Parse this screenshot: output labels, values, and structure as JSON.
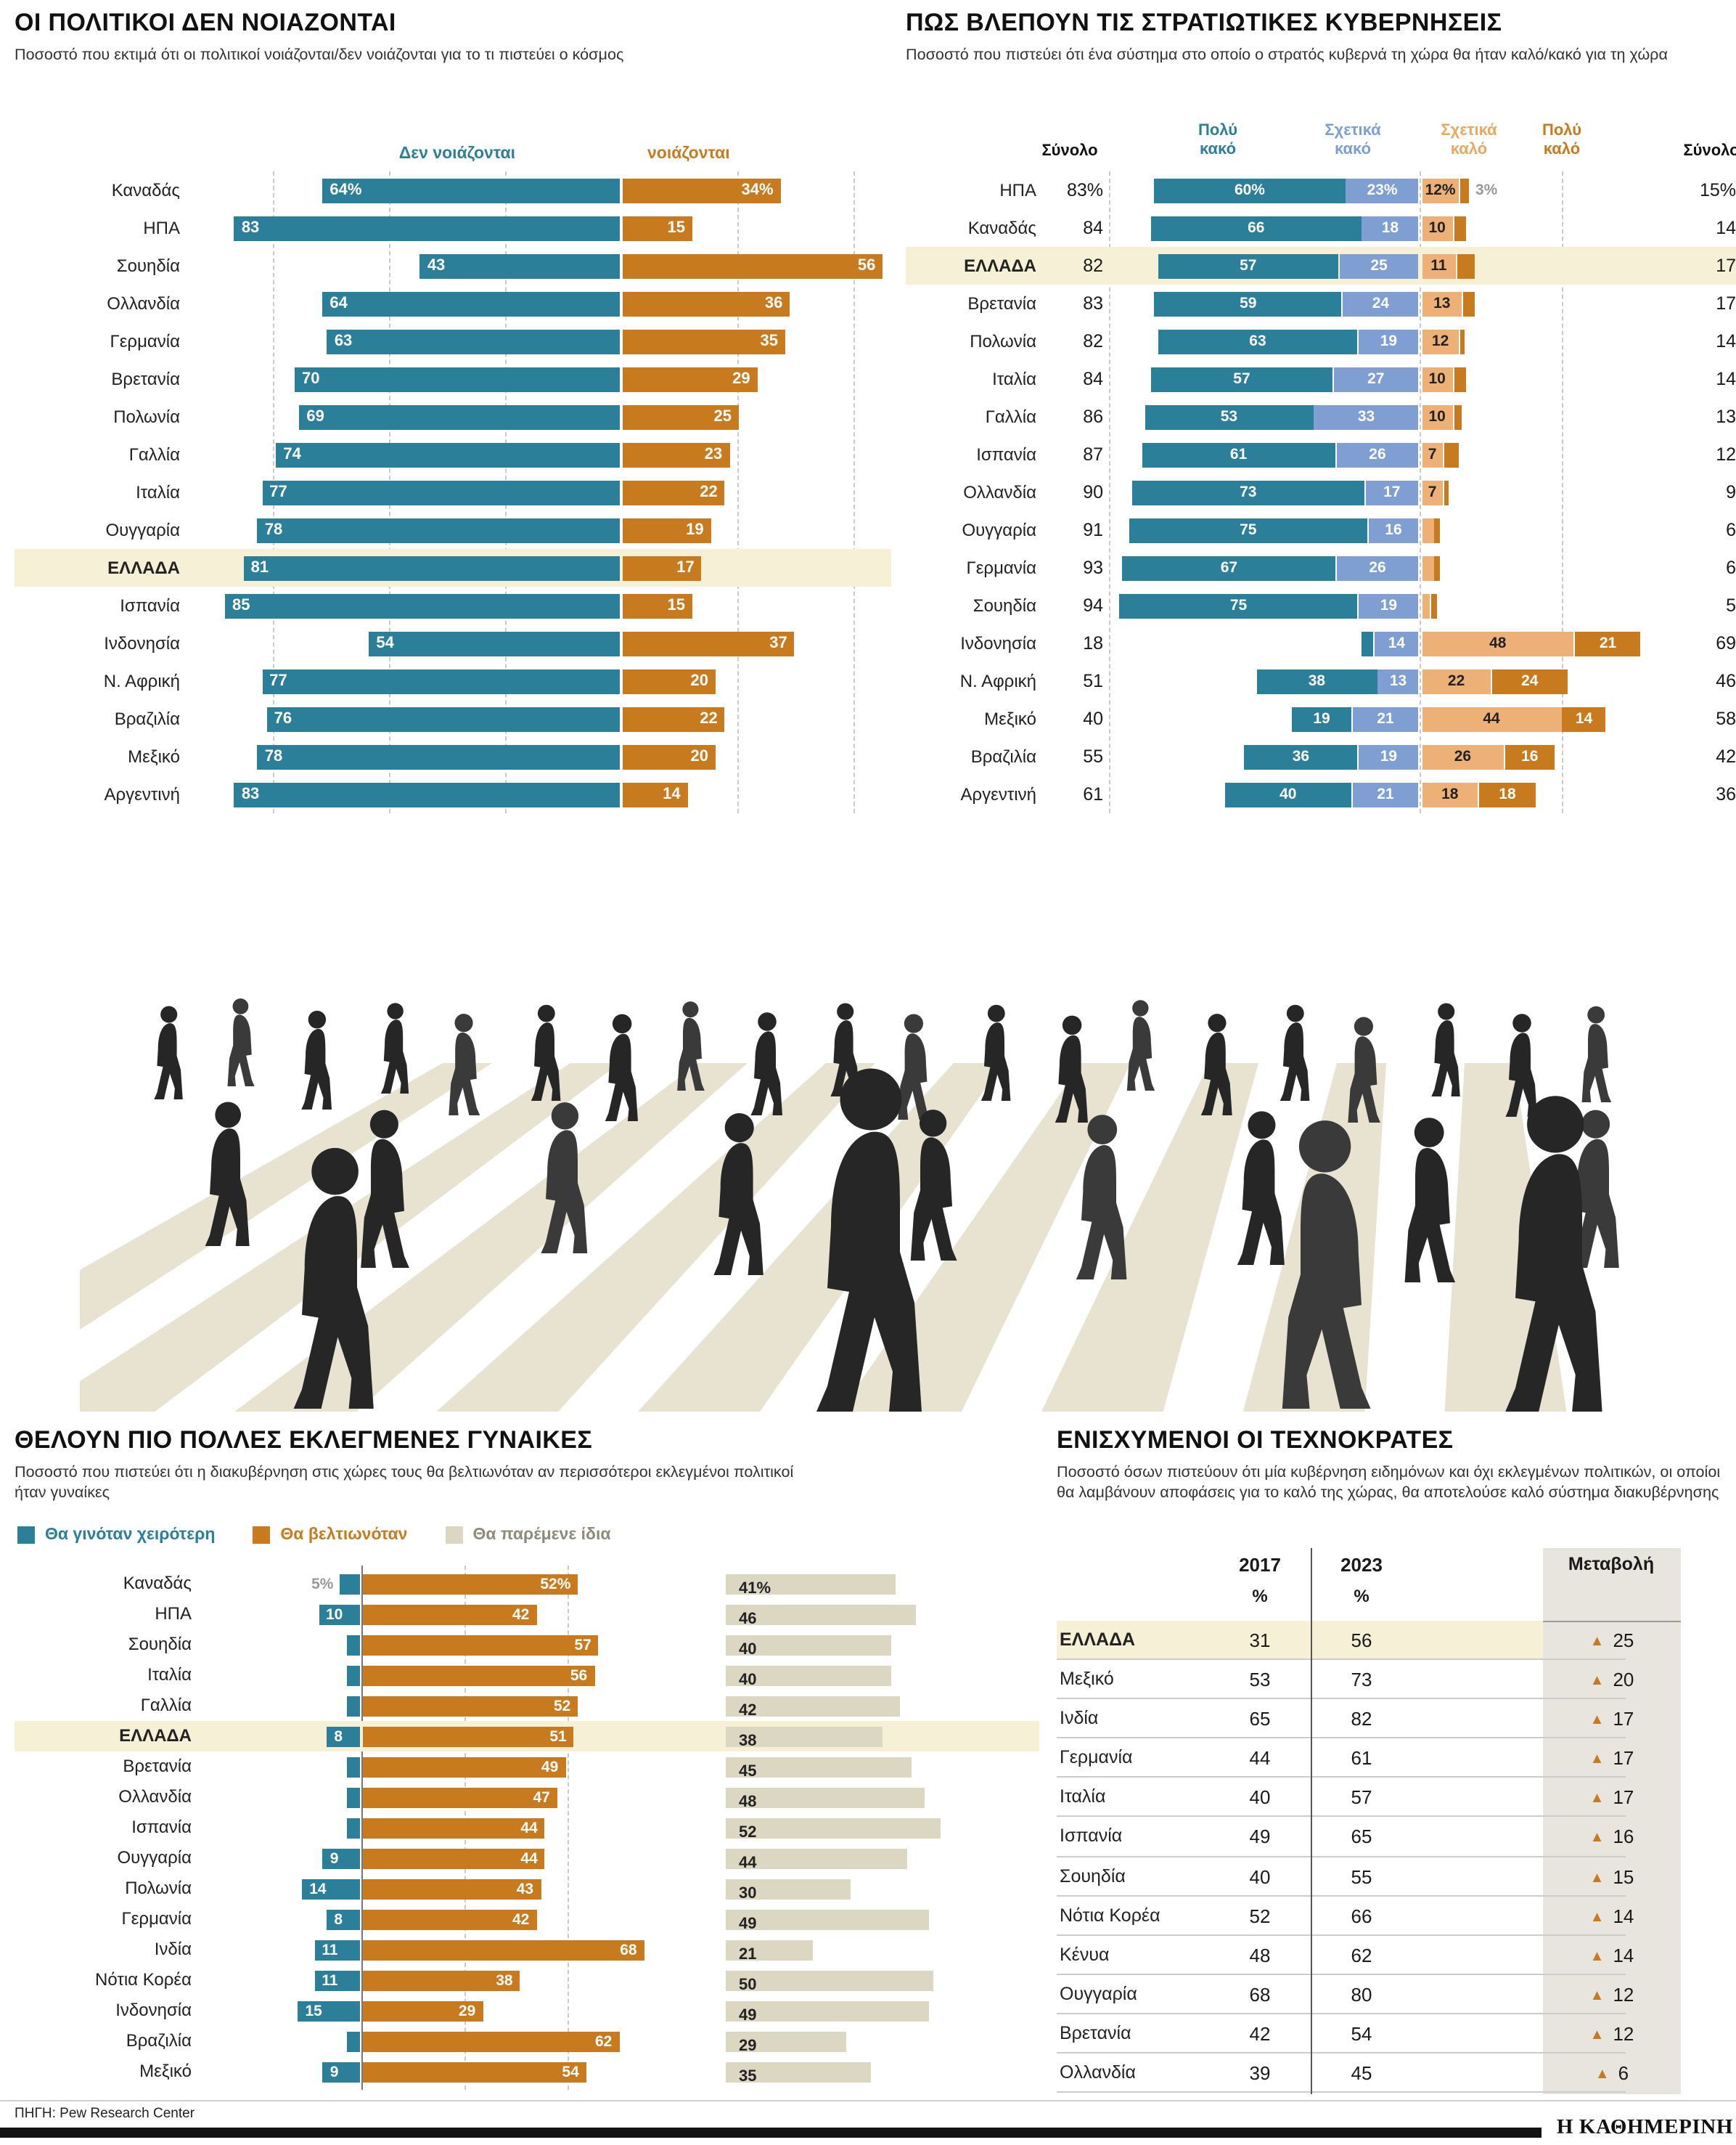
{
  "page": {
    "source": "ΠΗΓΗ: Pew Research Center",
    "brand": "Η ΚΑΘΗΜΕΡΙΝΗ"
  },
  "colors": {
    "teal": "#2b7f99",
    "orange": "#c87a1e",
    "light_blue": "#7f9ed2",
    "light_orange": "#edb178",
    "beige_bar": "#dcd7c3",
    "highlight_row": "#f6f1d6",
    "zebra_stripe": "#e8e3d0",
    "figure_dark": "#2b2b2b",
    "gray_label": "#999999",
    "change_column_bg": "#e7e5de"
  },
  "chart_data": [
    {
      "id": "politicians_dont_care",
      "type": "bar",
      "subtype": "diverging",
      "title": "ΟΙ ΠΟΛΙΤΙΚΟΙ ΔΕΝ ΝΟΙΑΖΟΝΤΑΙ",
      "subtitle": "Ποσοστό που εκτιμά ότι οι πολιτικοί νοιάζονται/δεν νοιάζονται για το τι πιστεύει ο κόσμος",
      "legend": [
        {
          "label": "Δεν νοιάζονται",
          "color": "#2b7f99"
        },
        {
          "label": "νοιάζονται",
          "color": "#c87a1e"
        }
      ],
      "highlight": "ΕΛΛΑΔΑ",
      "xlim": [
        0,
        100
      ],
      "rows": [
        {
          "country": "Καναδάς",
          "dont_care": 64,
          "dont_care_label": "64%",
          "care": 34,
          "care_label": "34%"
        },
        {
          "country": "ΗΠΑ",
          "dont_care": 83,
          "dont_care_label": "83",
          "care": 15,
          "care_label": "15"
        },
        {
          "country": "Σουηδία",
          "dont_care": 43,
          "dont_care_label": "43",
          "care": 56,
          "care_label": "56"
        },
        {
          "country": "Ολλανδία",
          "dont_care": 64,
          "dont_care_label": "64",
          "care": 36,
          "care_label": "36"
        },
        {
          "country": "Γερμανία",
          "dont_care": 63,
          "dont_care_label": "63",
          "care": 35,
          "care_label": "35"
        },
        {
          "country": "Βρετανία",
          "dont_care": 70,
          "dont_care_label": "70",
          "care": 29,
          "care_label": "29"
        },
        {
          "country": "Πολωνία",
          "dont_care": 69,
          "dont_care_label": "69",
          "care": 25,
          "care_label": "25"
        },
        {
          "country": "Γαλλία",
          "dont_care": 74,
          "dont_care_label": "74",
          "care": 23,
          "care_label": "23"
        },
        {
          "country": "Ιταλία",
          "dont_care": 77,
          "dont_care_label": "77",
          "care": 22,
          "care_label": "22"
        },
        {
          "country": "Ουγγαρία",
          "dont_care": 78,
          "dont_care_label": "78",
          "care": 19,
          "care_label": "19"
        },
        {
          "country": "ΕΛΛΑΔΑ",
          "dont_care": 81,
          "dont_care_label": "81",
          "care": 17,
          "care_label": "17"
        },
        {
          "country": "Ισπανία",
          "dont_care": 85,
          "dont_care_label": "85",
          "care": 15,
          "care_label": "15"
        },
        {
          "country": "Ινδονησία",
          "dont_care": 54,
          "dont_care_label": "54",
          "care": 37,
          "care_label": "37"
        },
        {
          "country": "Ν. Αφρική",
          "dont_care": 77,
          "dont_care_label": "77",
          "care": 20,
          "care_label": "20"
        },
        {
          "country": "Βραζιλία",
          "dont_care": 76,
          "dont_care_label": "76",
          "care": 22,
          "care_label": "22"
        },
        {
          "country": "Μεξικό",
          "dont_care": 78,
          "dont_care_label": "78",
          "care": 20,
          "care_label": "20"
        },
        {
          "country": "Αργεντινή",
          "dont_care": 83,
          "dont_care_label": "83",
          "care": 14,
          "care_label": "14"
        }
      ]
    },
    {
      "id": "military_governments",
      "type": "bar",
      "subtype": "stacked_opposed",
      "title": "ΠΩΣ ΒΛΕΠΟΥΝ ΤΙΣ ΣΤΡΑΤΙΩΤΙΚΕΣ ΚΥΒΕΡΝΗΣΕΙΣ",
      "subtitle": "Ποσοστό που πιστεύει ότι ένα σύστημα στο οποίο ο στρατός κυβερνά τη χώρα θα ήταν καλό/κακό για τη χώρα",
      "col_headers": {
        "total_left": "Σύνολο",
        "very_bad": "Πολύ\nκακό",
        "somewhat_bad": "Σχετικά\nκακό",
        "somewhat_good": "Σχετικά\nκαλό",
        "very_good": "Πολύ\nκαλό",
        "total_right": "Σύνολο"
      },
      "highlight": "ΕΛΛΑΔΑ",
      "rows": [
        {
          "country": "ΗΠΑ",
          "total_bad": 83,
          "total_bad_label": "83%",
          "very_bad": 60,
          "very_bad_label": "60%",
          "somewhat_bad": 23,
          "somewhat_bad_label": "23%",
          "somewhat_good": 12,
          "somewhat_good_label": "12%",
          "very_good": 3,
          "very_good_label": "",
          "very_good_outside_label": "3%",
          "total_good": 15,
          "total_good_label": "15%"
        },
        {
          "country": "Καναδάς",
          "total_bad": 84,
          "total_bad_label": "84",
          "very_bad": 66,
          "very_bad_label": "66",
          "somewhat_bad": 18,
          "somewhat_bad_label": "18",
          "somewhat_good": 10,
          "somewhat_good_label": "10",
          "very_good": 4,
          "very_good_label": "",
          "total_good": 14,
          "total_good_label": "14"
        },
        {
          "country": "ΕΛΛΑΔΑ",
          "total_bad": 82,
          "total_bad_label": "82",
          "very_bad": 57,
          "very_bad_label": "57",
          "somewhat_bad": 25,
          "somewhat_bad_label": "25",
          "somewhat_good": 11,
          "somewhat_good_label": "11",
          "very_good": 6,
          "very_good_label": "",
          "total_good": 17,
          "total_good_label": "17"
        },
        {
          "country": "Βρετανία",
          "total_bad": 83,
          "total_bad_label": "83",
          "very_bad": 59,
          "very_bad_label": "59",
          "somewhat_bad": 24,
          "somewhat_bad_label": "24",
          "somewhat_good": 13,
          "somewhat_good_label": "13",
          "very_good": 4,
          "very_good_label": "",
          "total_good": 17,
          "total_good_label": "17"
        },
        {
          "country": "Πολωνία",
          "total_bad": 82,
          "total_bad_label": "82",
          "very_bad": 63,
          "very_bad_label": "63",
          "somewhat_bad": 19,
          "somewhat_bad_label": "19",
          "somewhat_good": 12,
          "somewhat_good_label": "12",
          "very_good": 2,
          "very_good_label": "",
          "total_good": 14,
          "total_good_label": "14"
        },
        {
          "country": "Ιταλία",
          "total_bad": 84,
          "total_bad_label": "84",
          "very_bad": 57,
          "very_bad_label": "57",
          "somewhat_bad": 27,
          "somewhat_bad_label": "27",
          "somewhat_good": 10,
          "somewhat_good_label": "10",
          "very_good": 4,
          "very_good_label": "",
          "total_good": 14,
          "total_good_label": "14"
        },
        {
          "country": "Γαλλία",
          "total_bad": 86,
          "total_bad_label": "86",
          "very_bad": 53,
          "very_bad_label": "53",
          "somewhat_bad": 33,
          "somewhat_bad_label": "33",
          "somewhat_good": 10,
          "somewhat_good_label": "10",
          "very_good": 3,
          "very_good_label": "",
          "total_good": 13,
          "total_good_label": "13"
        },
        {
          "country": "Ισπανία",
          "total_bad": 87,
          "total_bad_label": "87",
          "very_bad": 61,
          "very_bad_label": "61",
          "somewhat_bad": 26,
          "somewhat_bad_label": "26",
          "somewhat_good": 7,
          "somewhat_good_label": "7",
          "very_good": 5,
          "very_good_label": "",
          "total_good": 12,
          "total_good_label": "12"
        },
        {
          "country": "Ολλανδία",
          "total_bad": 90,
          "total_bad_label": "90",
          "very_bad": 73,
          "very_bad_label": "73",
          "somewhat_bad": 17,
          "somewhat_bad_label": "17",
          "somewhat_good": 7,
          "somewhat_good_label": "7",
          "very_good": 2,
          "very_good_label": "",
          "total_good": 9,
          "total_good_label": "9"
        },
        {
          "country": "Ουγγαρία",
          "total_bad": 91,
          "total_bad_label": "91",
          "very_bad": 75,
          "very_bad_label": "75",
          "somewhat_bad": 16,
          "somewhat_bad_label": "16",
          "somewhat_good": 4,
          "somewhat_good_label": "",
          "very_good": 2,
          "very_good_label": "",
          "total_good": 6,
          "total_good_label": "6"
        },
        {
          "country": "Γερμανία",
          "total_bad": 93,
          "total_bad_label": "93",
          "very_bad": 67,
          "very_bad_label": "67",
          "somewhat_bad": 26,
          "somewhat_bad_label": "26",
          "somewhat_good": 4,
          "somewhat_good_label": "",
          "very_good": 2,
          "very_good_label": "",
          "total_good": 6,
          "total_good_label": "6"
        },
        {
          "country": "Σουηδία",
          "total_bad": 94,
          "total_bad_label": "94",
          "very_bad": 75,
          "very_bad_label": "75",
          "somewhat_bad": 19,
          "somewhat_bad_label": "19",
          "somewhat_good": 3,
          "somewhat_good_label": "",
          "very_good": 2,
          "very_good_label": "",
          "total_good": 5,
          "total_good_label": "5"
        },
        {
          "country": "Ινδονησία",
          "total_bad": 18,
          "total_bad_label": "18",
          "very_bad": 4,
          "very_bad_label": "",
          "somewhat_bad": 14,
          "somewhat_bad_label": "14",
          "somewhat_good": 48,
          "somewhat_good_label": "48",
          "very_good": 21,
          "very_good_label": "21",
          "total_good": 69,
          "total_good_label": "69"
        },
        {
          "country": "Ν. Αφρική",
          "total_bad": 51,
          "total_bad_label": "51",
          "very_bad": 38,
          "very_bad_label": "38",
          "somewhat_bad": 13,
          "somewhat_bad_label": "13",
          "somewhat_good": 22,
          "somewhat_good_label": "22",
          "very_good": 24,
          "very_good_label": "24",
          "total_good": 46,
          "total_good_label": "46"
        },
        {
          "country": "Μεξικό",
          "total_bad": 40,
          "total_bad_label": "40",
          "very_bad": 19,
          "very_bad_label": "19",
          "somewhat_bad": 21,
          "somewhat_bad_label": "21",
          "somewhat_good": 44,
          "somewhat_good_label": "44",
          "very_good": 14,
          "very_good_label": "14",
          "total_good": 58,
          "total_good_label": "58"
        },
        {
          "country": "Βραζιλία",
          "total_bad": 55,
          "total_bad_label": "55",
          "very_bad": 36,
          "very_bad_label": "36",
          "somewhat_bad": 19,
          "somewhat_bad_label": "19",
          "somewhat_good": 26,
          "somewhat_good_label": "26",
          "very_good": 16,
          "very_good_label": "16",
          "total_good": 42,
          "total_good_label": "42"
        },
        {
          "country": "Αργεντινή",
          "total_bad": 61,
          "total_bad_label": "61",
          "very_bad": 40,
          "very_bad_label": "40",
          "somewhat_bad": 21,
          "somewhat_bad_label": "21",
          "somewhat_good": 18,
          "somewhat_good_label": "18",
          "very_good": 18,
          "very_good_label": "18",
          "total_good": 36,
          "total_good_label": "36"
        }
      ]
    },
    {
      "id": "elected_women",
      "type": "bar",
      "subtype": "diverging_plus_side_bar",
      "title": "ΘΕΛΟΥΝ ΠΙΟ ΠΟΛΛΕΣ ΕΚΛΕΓΜΕΝΕΣ ΓΥΝΑΙΚΕΣ",
      "subtitle": "Ποσοστό που πιστεύει ότι η διακυβέρνηση στις χώρες τους θα βελτιωνόταν αν περισσότεροι εκλεγμένοι πολιτικοί ήταν γυναίκες",
      "legend": [
        {
          "label": "Θα γινόταν χειρότερη",
          "color": "#2b7f99"
        },
        {
          "label": "Θα βελτιωνόταν",
          "color": "#c87a1e"
        },
        {
          "label": "Θα παρέμενε ίδια",
          "color": "#dcd7c3"
        }
      ],
      "highlight": "ΕΛΛΑΔΑ",
      "rows": [
        {
          "country": "Καναδάς",
          "worse": 5,
          "worse_label": "5%",
          "worse_label_outside": true,
          "better": 52,
          "better_label": "52%",
          "same": 41,
          "same_label": "41%"
        },
        {
          "country": "ΗΠΑ",
          "worse": 10,
          "worse_label": "10",
          "worse_label_outside": false,
          "better": 42,
          "better_label": "42",
          "same": 46,
          "same_label": "46"
        },
        {
          "country": "Σουηδία",
          "worse": 3,
          "worse_label": "",
          "worse_label_outside": false,
          "better": 57,
          "better_label": "57",
          "same": 40,
          "same_label": "40"
        },
        {
          "country": "Ιταλία",
          "worse": 3,
          "worse_label": "",
          "worse_label_outside": false,
          "better": 56,
          "better_label": "56",
          "same": 40,
          "same_label": "40"
        },
        {
          "country": "Γαλλία",
          "worse": 3,
          "worse_label": "",
          "worse_label_outside": false,
          "better": 52,
          "better_label": "52",
          "same": 42,
          "same_label": "42"
        },
        {
          "country": "ΕΛΛΑΔΑ",
          "worse": 8,
          "worse_label": "8",
          "worse_label_outside": false,
          "better": 51,
          "better_label": "51",
          "same": 38,
          "same_label": "38"
        },
        {
          "country": "Βρετανία",
          "worse": 3,
          "worse_label": "",
          "worse_label_outside": false,
          "better": 49,
          "better_label": "49",
          "same": 45,
          "same_label": "45"
        },
        {
          "country": "Ολλανδία",
          "worse": 3,
          "worse_label": "",
          "worse_label_outside": false,
          "better": 47,
          "better_label": "47",
          "same": 48,
          "same_label": "48"
        },
        {
          "country": "Ισπανία",
          "worse": 3,
          "worse_label": "",
          "worse_label_outside": false,
          "better": 44,
          "better_label": "44",
          "same": 52,
          "same_label": "52"
        },
        {
          "country": "Ουγγαρία",
          "worse": 9,
          "worse_label": "9",
          "worse_label_outside": false,
          "better": 44,
          "better_label": "44",
          "same": 44,
          "same_label": "44"
        },
        {
          "country": "Πολωνία",
          "worse": 14,
          "worse_label": "14",
          "worse_label_outside": false,
          "better": 43,
          "better_label": "43",
          "same": 30,
          "same_label": "30"
        },
        {
          "country": "Γερμανία",
          "worse": 8,
          "worse_label": "8",
          "worse_label_outside": false,
          "better": 42,
          "better_label": "42",
          "same": 49,
          "same_label": "49"
        },
        {
          "country": "Ινδία",
          "worse": 11,
          "worse_label": "11",
          "worse_label_outside": false,
          "better": 68,
          "better_label": "68",
          "same": 21,
          "same_label": "21"
        },
        {
          "country": "Νότια Κορέα",
          "worse": 11,
          "worse_label": "11",
          "worse_label_outside": false,
          "better": 38,
          "better_label": "38",
          "same": 50,
          "same_label": "50"
        },
        {
          "country": "Ινδονησία",
          "worse": 15,
          "worse_label": "15",
          "worse_label_outside": false,
          "better": 29,
          "better_label": "29",
          "same": 49,
          "same_label": "49"
        },
        {
          "country": "Βραζιλία",
          "worse": 3,
          "worse_label": "",
          "worse_label_outside": false,
          "better": 62,
          "better_label": "62",
          "same": 29,
          "same_label": "29"
        },
        {
          "country": "Μεξικό",
          "worse": 9,
          "worse_label": "9",
          "worse_label_outside": false,
          "better": 54,
          "better_label": "54",
          "same": 35,
          "same_label": "35"
        }
      ]
    },
    {
      "id": "technocrats",
      "type": "table",
      "title": "ΕΝΙΣΧΥΜΕΝΟΙ ΟΙ ΤΕΧΝΟΚΡΑΤΕΣ",
      "subtitle": "Ποσοστό όσων πιστεύουν ότι μία κυβέρνηση ειδημόνων και όχι εκλεγμένων πολιτικών, οι οποίοι θα λαμβάνουν αποφάσεις για το καλό της χώρας, θα αποτελούσε καλό σύστημα διακυβέρνησης",
      "columns": [
        "2017",
        "2023",
        "Μεταβολή"
      ],
      "unit": "%",
      "change_symbol": "▲",
      "highlight": "ΕΛΛΑΔΑ",
      "rows": [
        {
          "country": "ΕΛΛΑΔΑ",
          "y2017": 31,
          "y2023": 56,
          "change": 25
        },
        {
          "country": "Μεξικό",
          "y2017": 53,
          "y2023": 73,
          "change": 20
        },
        {
          "country": "Ινδία",
          "y2017": 65,
          "y2023": 82,
          "change": 17
        },
        {
          "country": "Γερμανία",
          "y2017": 44,
          "y2023": 61,
          "change": 17
        },
        {
          "country": "Ιταλία",
          "y2017": 40,
          "y2023": 57,
          "change": 17
        },
        {
          "country": "Ισπανία",
          "y2017": 49,
          "y2023": 65,
          "change": 16
        },
        {
          "country": "Σουηδία",
          "y2017": 40,
          "y2023": 55,
          "change": 15
        },
        {
          "country": "Νότια Κορέα",
          "y2017": 52,
          "y2023": 66,
          "change": 14
        },
        {
          "country": "Κένυα",
          "y2017": 48,
          "y2023": 62,
          "change": 14
        },
        {
          "country": "Ουγγαρία",
          "y2017": 68,
          "y2023": 80,
          "change": 12
        },
        {
          "country": "Βρετανία",
          "y2017": 42,
          "y2023": 54,
          "change": 12
        },
        {
          "country": "Ολλανδία",
          "y2017": 39,
          "y2023": 45,
          "change": 6
        }
      ]
    }
  ]
}
